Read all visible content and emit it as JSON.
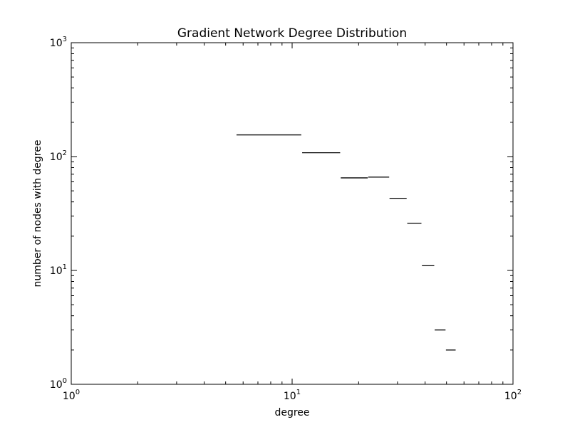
{
  "chart_data": {
    "type": "step",
    "title": "Gradient Network Degree Distribution",
    "xlabel": "degree",
    "ylabel": "number of nodes with degree",
    "xscale": "log",
    "yscale": "log",
    "xlim": [
      1,
      100
    ],
    "ylim": [
      1,
      1000
    ],
    "grid": false,
    "xticks": [
      {
        "value": 1,
        "base": "10",
        "exp": "0"
      },
      {
        "value": 10,
        "base": "10",
        "exp": "1"
      },
      {
        "value": 100,
        "base": "10",
        "exp": "2"
      }
    ],
    "yticks": [
      {
        "value": 1,
        "base": "10",
        "exp": "0"
      },
      {
        "value": 10,
        "base": "10",
        "exp": "1"
      },
      {
        "value": 100,
        "base": "10",
        "exp": "2"
      },
      {
        "value": 1000,
        "base": "10",
        "exp": "3"
      }
    ],
    "segments": [
      {
        "x0": 5.6,
        "x1": 11.0,
        "y": 155
      },
      {
        "x0": 11.1,
        "x1": 16.5,
        "y": 108
      },
      {
        "x0": 16.6,
        "x1": 22.0,
        "y": 65
      },
      {
        "x0": 22.1,
        "x1": 27.5,
        "y": 66
      },
      {
        "x0": 27.6,
        "x1": 33.0,
        "y": 43
      },
      {
        "x0": 33.2,
        "x1": 38.5,
        "y": 26
      },
      {
        "x0": 38.7,
        "x1": 44.0,
        "y": 11
      },
      {
        "x0": 44.2,
        "x1": 49.5,
        "y": 3
      },
      {
        "x0": 49.7,
        "x1": 55.0,
        "y": 2
      }
    ],
    "line_color": "#000000"
  }
}
